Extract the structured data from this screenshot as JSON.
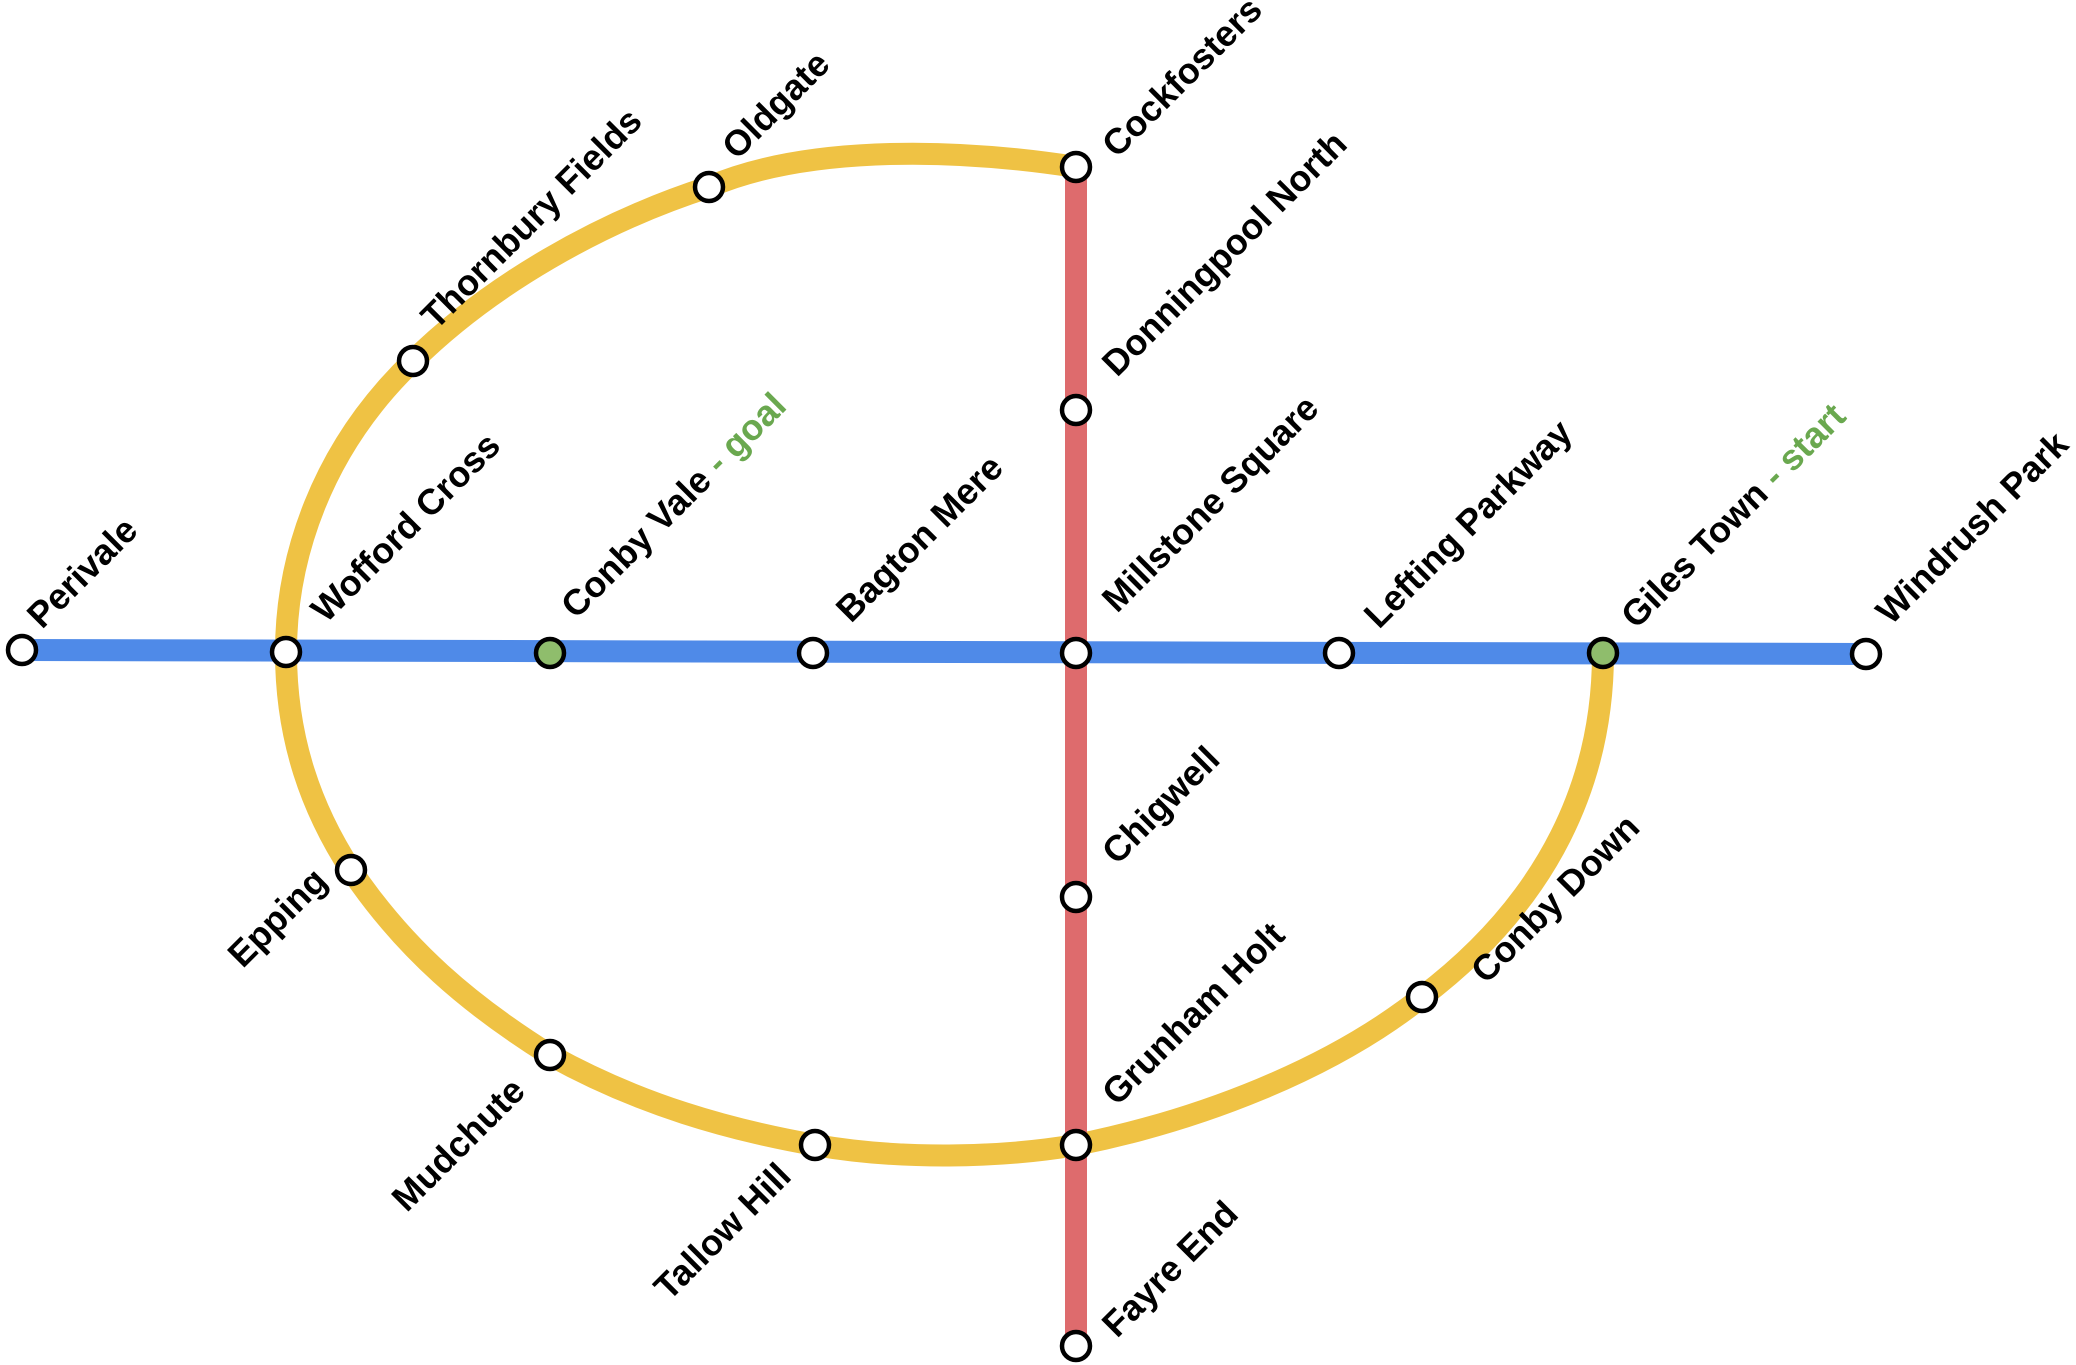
{
  "colors": {
    "blue_line": "#4f8ae8",
    "yellow_line": "#efc244",
    "red_line": "#de6b6d",
    "station_fill": "#ffffff",
    "highlight_fill": "#8fbd6c",
    "suffix_text": "#6aa84f"
  },
  "lines": [
    {
      "id": "blue",
      "color_key": "blue_line"
    },
    {
      "id": "yellow",
      "color_key": "yellow_line"
    },
    {
      "id": "red",
      "color_key": "red_line"
    }
  ],
  "stations": [
    {
      "id": "perivale",
      "name": "Perivale"
    },
    {
      "id": "wofford-cross",
      "name": "Wofford Cross"
    },
    {
      "id": "conby-vale",
      "name": "Conby Vale",
      "suffix": " - goal",
      "highlight": true
    },
    {
      "id": "bagton-mere",
      "name": "Bagton Mere"
    },
    {
      "id": "millstone-square",
      "name": "Millstone Square"
    },
    {
      "id": "lefting-parkway",
      "name": "Lefting Parkway"
    },
    {
      "id": "giles-town",
      "name": "Giles Town",
      "suffix": " - start",
      "highlight": true
    },
    {
      "id": "windrush-park",
      "name": "Windrush Park"
    },
    {
      "id": "cockfosters",
      "name": "Cockfosters"
    },
    {
      "id": "donningpool-north",
      "name": "Donningpool North"
    },
    {
      "id": "chigwell",
      "name": "Chigwell"
    },
    {
      "id": "grunham-holt",
      "name": "Grunham Holt"
    },
    {
      "id": "fayre-end",
      "name": "Fayre End"
    },
    {
      "id": "oldgate",
      "name": "Oldgate"
    },
    {
      "id": "thornbury-fields",
      "name": "Thornbury Fields"
    },
    {
      "id": "epping",
      "name": "Epping"
    },
    {
      "id": "mudchute",
      "name": "Mudchute"
    },
    {
      "id": "tallow-hill",
      "name": "Tallow Hill"
    },
    {
      "id": "conby-down",
      "name": "Conby Down"
    }
  ]
}
